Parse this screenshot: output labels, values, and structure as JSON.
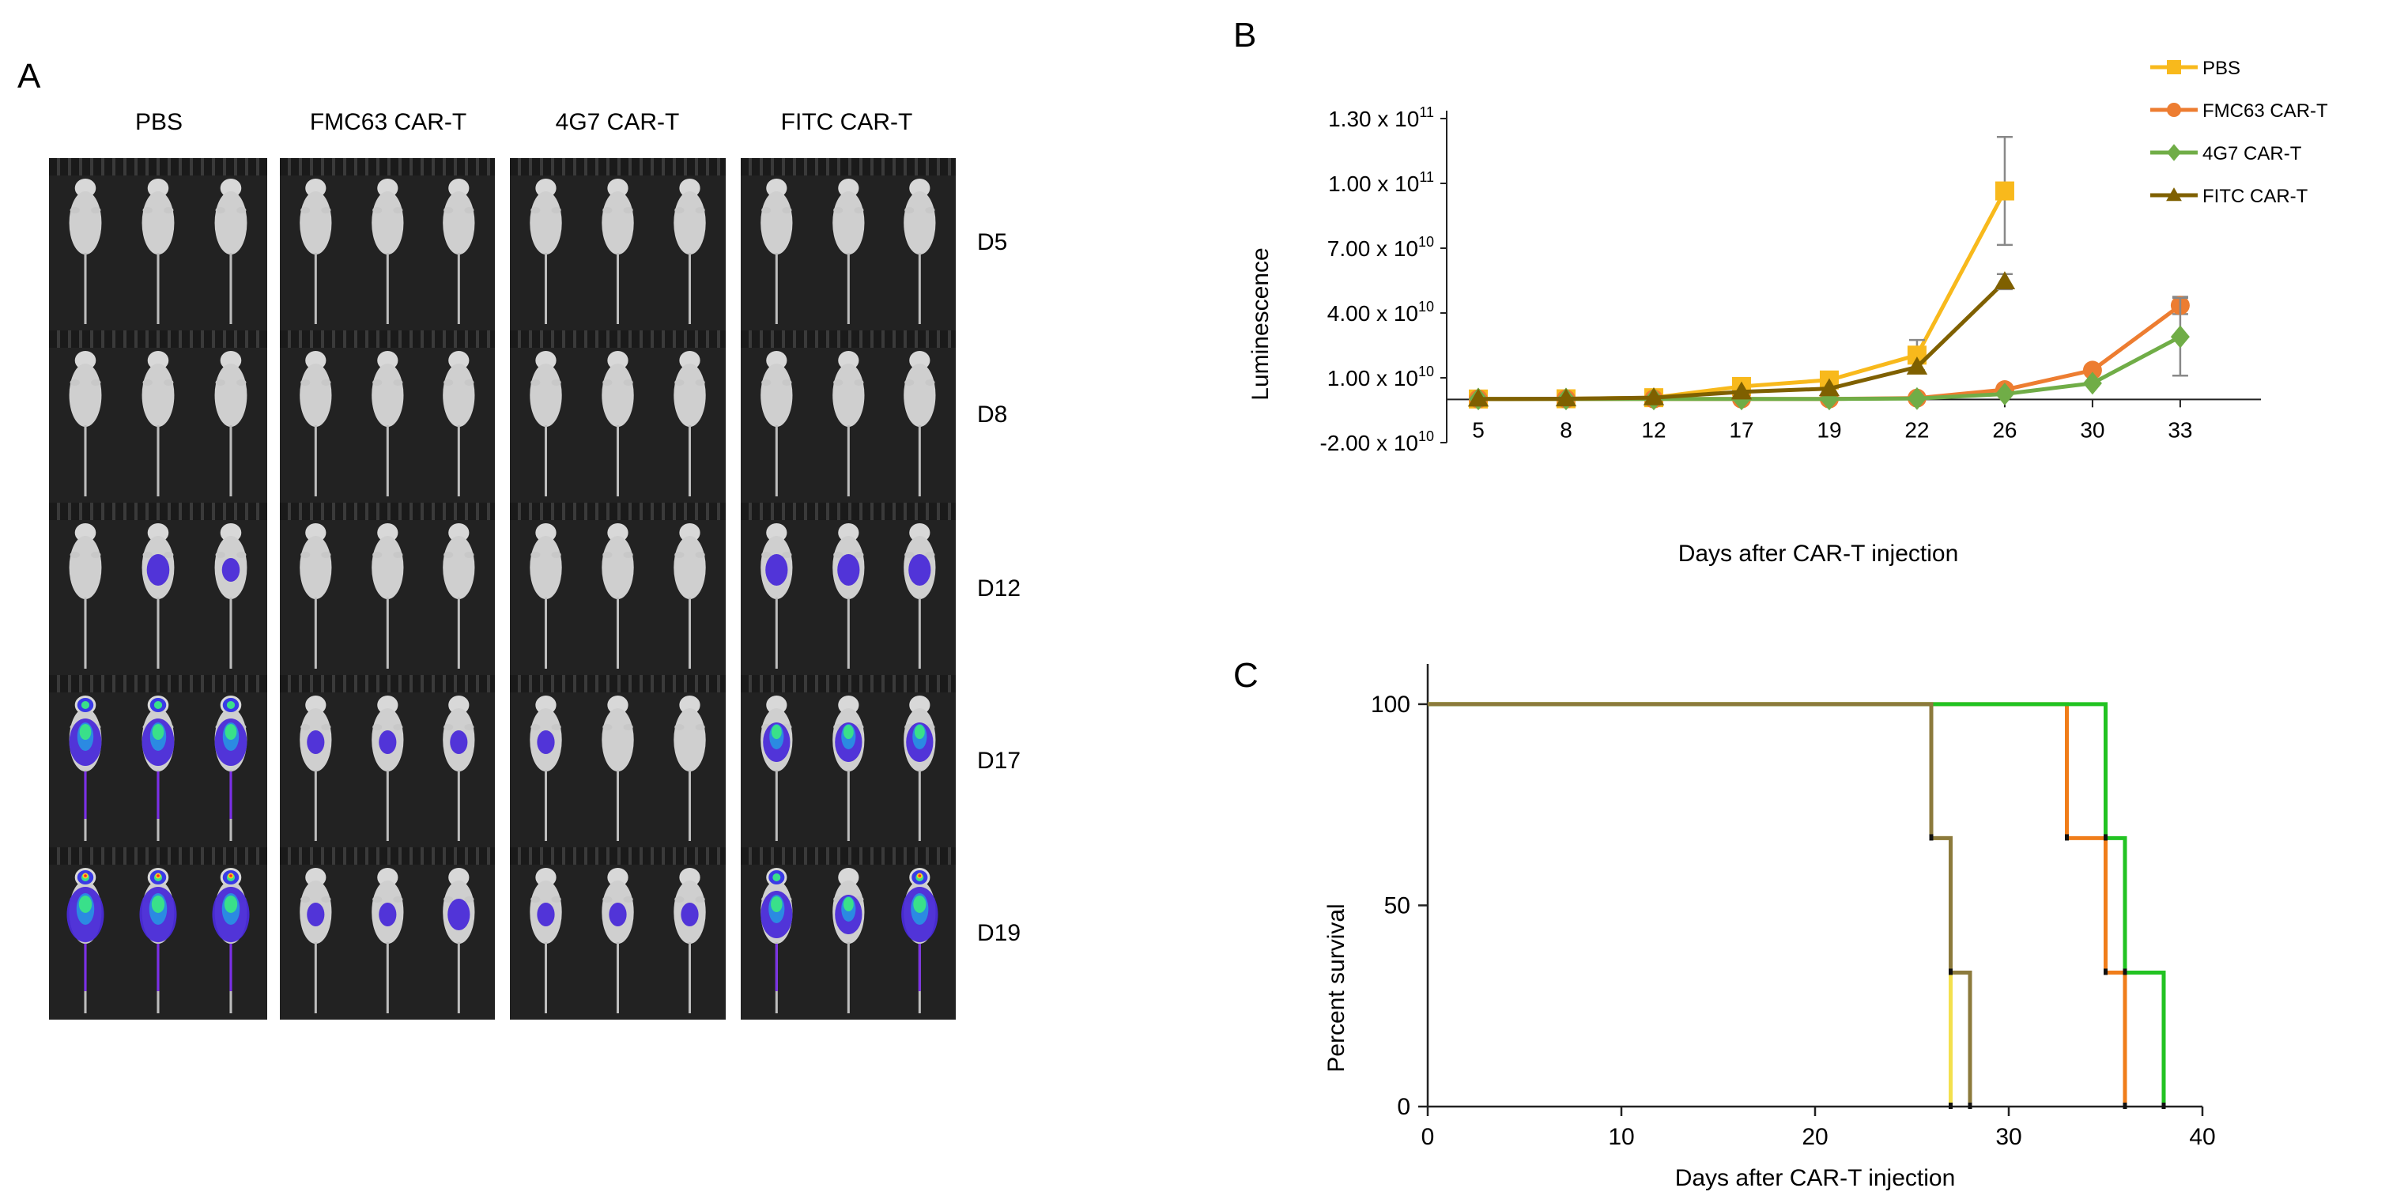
{
  "panels": {
    "a": "A",
    "b": "B",
    "c": "C"
  },
  "panel_a": {
    "columns": [
      "PBS",
      "FMC63 CAR-T",
      "4G7 CAR-T",
      "FITC CAR-T"
    ],
    "rows": [
      "D5",
      "D8",
      "D12",
      "D17",
      "D19"
    ],
    "signal": [
      [
        [
          0,
          0,
          0
        ],
        [
          0,
          0,
          0
        ],
        [
          0,
          0,
          0
        ],
        [
          0,
          0,
          0
        ]
      ],
      [
        [
          0,
          0,
          0
        ],
        [
          0,
          0,
          0
        ],
        [
          0,
          0,
          0
        ],
        [
          0,
          0,
          0
        ]
      ],
      [
        [
          0,
          2,
          1
        ],
        [
          0,
          0,
          0
        ],
        [
          0,
          0,
          0
        ],
        [
          2,
          2,
          2
        ]
      ],
      [
        [
          4,
          4,
          4
        ],
        [
          1,
          1,
          1
        ],
        [
          1,
          0,
          0
        ],
        [
          3,
          3,
          3
        ]
      ],
      [
        [
          5,
          5,
          5
        ],
        [
          1,
          1,
          2
        ],
        [
          1,
          1,
          1
        ],
        [
          4,
          3,
          5
        ]
      ]
    ]
  },
  "colors": {
    "pbs": "#F8B91C",
    "fmc63": "#ED7D31",
    "g47": "#70AD47",
    "fitc": "#7F6000",
    "surv_pbs": "#F4E04D",
    "surv_fmc63": "#F07D1A",
    "surv_g47": "#22C322",
    "surv_fitc": "#8C7A3C"
  },
  "chart_data": [
    {
      "type": "line",
      "title": "",
      "xlabel": "Days after CAR-T injection",
      "ylabel": "Luminescence",
      "categories": [
        "5",
        "8",
        "12",
        "17",
        "19",
        "22",
        "26",
        "30",
        "33"
      ],
      "ylim": [
        -20000000000.0,
        130000000000.0
      ],
      "yticks": [
        {
          "mant": "-2.00 x 10",
          "exp": "10"
        },
        {
          "mant": "1.00 x 10",
          "exp": "10"
        },
        {
          "mant": "4.00 x 10",
          "exp": "10"
        },
        {
          "mant": "7.00 x 10",
          "exp": "10"
        },
        {
          "mant": "1.00 x 10",
          "exp": "11"
        },
        {
          "mant": "1.30 x 10",
          "exp": "11"
        }
      ],
      "ytick_values": [
        -20000000000.0,
        10000000000.0,
        40000000000.0,
        70000000000.0,
        100000000000.0,
        130000000000.0
      ],
      "legend_position": "top-right",
      "series": [
        {
          "name": "PBS",
          "marker": "square",
          "values": [
            200000000.0,
            300000000.0,
            800000000.0,
            6000000000.0,
            9000000000.0,
            20500000000.0,
            96500000000.0,
            null,
            null
          ],
          "err": [
            0,
            0,
            0,
            0,
            0,
            7000000000.0,
            25000000000.0,
            null,
            null
          ]
        },
        {
          "name": "FMC63 CAR-T",
          "marker": "circle",
          "values": [
            200000000.0,
            200000000.0,
            200000000.0,
            200000000.0,
            200000000.0,
            600000000.0,
            4500000000.0,
            13500000000.0,
            43500000000.0
          ],
          "err": [
            0,
            0,
            0,
            0,
            0,
            0,
            0,
            0,
            4000000000.0
          ]
        },
        {
          "name": "4G7 CAR-T",
          "marker": "diamond",
          "values": [
            200000000.0,
            200000000.0,
            200000000.0,
            200000000.0,
            200000000.0,
            400000000.0,
            2500000000.0,
            7500000000.0,
            29000000000.0
          ],
          "err": [
            0,
            0,
            0,
            0,
            0,
            0,
            0,
            0,
            18000000000.0
          ]
        },
        {
          "name": "FITC CAR-T",
          "marker": "triangle",
          "values": [
            200000000.0,
            300000000.0,
            800000000.0,
            3500000000.0,
            5000000000.0,
            15000000000.0,
            54500000000.0,
            null,
            null
          ],
          "err": [
            0,
            0,
            0,
            0,
            0,
            0,
            3500000000.0,
            null,
            null
          ]
        }
      ]
    },
    {
      "type": "line",
      "subtype": "step",
      "title": "",
      "xlabel": "Days after CAR-T injection",
      "ylabel": "Percent survival",
      "xlim": [
        0,
        40
      ],
      "ylim": [
        0,
        110
      ],
      "xticks": [
        "0",
        "10",
        "20",
        "30",
        "40"
      ],
      "xtick_values": [
        0,
        10,
        20,
        30,
        40
      ],
      "yticks": [
        "0",
        "50",
        "100"
      ],
      "ytick_values": [
        0,
        50,
        100
      ],
      "series": [
        {
          "name": "PBS",
          "points": [
            [
              0,
              100
            ],
            [
              26,
              100
            ],
            [
              26,
              66.7
            ],
            [
              27,
              66.7
            ],
            [
              27,
              0
            ]
          ]
        },
        {
          "name": "FMC63 CAR-T",
          "points": [
            [
              0,
              100
            ],
            [
              33,
              100
            ],
            [
              33,
              66.7
            ],
            [
              35,
              66.7
            ],
            [
              35,
              33.3
            ],
            [
              36,
              33.3
            ],
            [
              36,
              0
            ]
          ]
        },
        {
          "name": "4G7 CAR-T",
          "points": [
            [
              0,
              100
            ],
            [
              35,
              100
            ],
            [
              35,
              66.7
            ],
            [
              36,
              66.7
            ],
            [
              36,
              33.3
            ],
            [
              38,
              33.3
            ],
            [
              38,
              0
            ]
          ]
        },
        {
          "name": "FITC CAR-T",
          "points": [
            [
              0,
              100
            ],
            [
              26,
              100
            ],
            [
              26,
              66.7
            ],
            [
              27,
              66.7
            ],
            [
              27,
              33.3
            ],
            [
              28,
              33.3
            ],
            [
              28,
              0
            ]
          ]
        }
      ],
      "censor_ticks": [
        [
          26,
          66.7
        ],
        [
          27,
          33.3
        ],
        [
          27,
          0
        ],
        [
          28,
          0
        ],
        [
          33,
          66.7
        ],
        [
          35,
          33.3
        ],
        [
          36,
          0
        ],
        [
          35,
          66.7
        ],
        [
          36,
          33.3
        ],
        [
          38,
          0
        ]
      ]
    }
  ]
}
